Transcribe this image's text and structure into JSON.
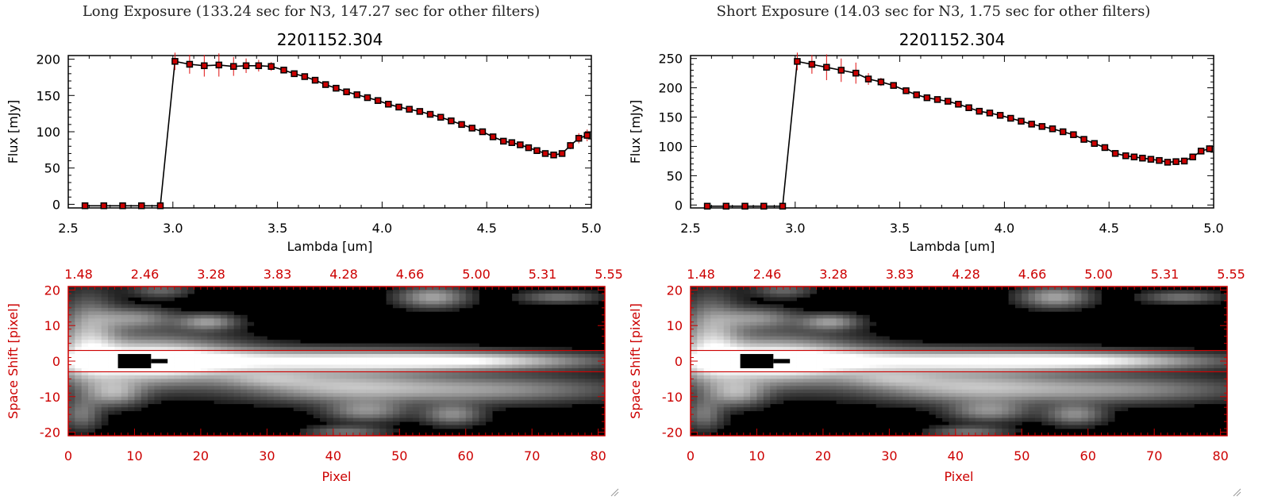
{
  "colors": {
    "line": "#000000",
    "marker": "#cc0000",
    "errbar": "#e01010",
    "axis_red": "#cc0000",
    "background": "#ffffff"
  },
  "panels": [
    {
      "title": "Long Exposure (133.24 sec for N3, 147.27 sec for other filters)",
      "chart_data": [
        {
          "type": "line",
          "title": "2201152.304",
          "xlabel": "Lambda [um]",
          "ylabel": "Flux [mJy]",
          "xlim": [
            2.5,
            5.0
          ],
          "ylim": [
            -5,
            205
          ],
          "xticks": [
            "2.5",
            "3.0",
            "3.5",
            "4.0",
            "4.5",
            "5.0"
          ],
          "yticks": [
            "0",
            "50",
            "100",
            "150",
            "200"
          ],
          "series": [
            {
              "name": "flux",
              "x": [
                2.58,
                2.67,
                2.76,
                2.85,
                2.94,
                3.01,
                3.08,
                3.15,
                3.22,
                3.29,
                3.35,
                3.41,
                3.47,
                3.53,
                3.58,
                3.63,
                3.68,
                3.73,
                3.78,
                3.83,
                3.88,
                3.93,
                3.98,
                4.03,
                4.08,
                4.13,
                4.18,
                4.23,
                4.28,
                4.33,
                4.38,
                4.43,
                4.48,
                4.53,
                4.58,
                4.62,
                4.66,
                4.7,
                4.74,
                4.78,
                4.82,
                4.86,
                4.9,
                4.94,
                4.98
              ],
              "y": [
                -2,
                -2,
                -2,
                -2,
                -2,
                197,
                193,
                191,
                192,
                190,
                191,
                191,
                190,
                185,
                180,
                176,
                171,
                165,
                160,
                155,
                151,
                147,
                143,
                138,
                134,
                131,
                128,
                124,
                120,
                115,
                110,
                105,
                100,
                93,
                87,
                85,
                82,
                78,
                74,
                70,
                68,
                70,
                81,
                91,
                95
              ],
              "err": [
                2,
                2,
                2,
                2,
                2,
                12,
                13,
                15,
                16,
                13,
                10,
                8,
                6,
                4,
                3,
                3,
                3,
                3,
                3,
                3,
                3,
                3,
                3,
                3,
                3,
                3,
                3,
                3,
                3,
                3,
                3,
                3,
                3,
                3,
                3,
                3,
                3,
                3,
                3,
                3,
                3,
                4,
                5,
                7,
                8
              ]
            }
          ]
        },
        {
          "type": "heatmap",
          "xlabel": "Pixel",
          "ylabel": "Space Shift [pixel]",
          "xlim": [
            0,
            81
          ],
          "ylim": [
            -21,
            21
          ],
          "xticks": [
            "0",
            "10",
            "20",
            "30",
            "40",
            "50",
            "60",
            "70",
            "80"
          ],
          "yticks": [
            "-20",
            "-10",
            "0",
            "10",
            "20"
          ],
          "top_ticks": [
            "1.48",
            "2.46",
            "3.28",
            "3.83",
            "4.28",
            "4.66",
            "5.00",
            "5.31",
            "5.55"
          ],
          "band": [
            -3,
            3
          ],
          "blobs": [
            {
              "x": 12,
              "y": 0,
              "sx": 9,
              "sy": 4.5,
              "a": 1.0
            },
            {
              "x": 35,
              "y": 0,
              "sx": 22,
              "sy": 2.2,
              "a": 0.9
            },
            {
              "x": 60,
              "y": 0,
              "sx": 12,
              "sy": 1.5,
              "a": 0.6
            },
            {
              "x": 3,
              "y": 6,
              "sx": 3,
              "sy": 8,
              "a": 0.6
            },
            {
              "x": 10,
              "y": 12,
              "sx": 4,
              "sy": 2,
              "a": 0.45
            },
            {
              "x": 21,
              "y": 11,
              "sx": 3,
              "sy": 1.5,
              "a": 0.5
            },
            {
              "x": 14,
              "y": 20,
              "sx": 3,
              "sy": 1.5,
              "a": 0.3
            },
            {
              "x": 55,
              "y": 18,
              "sx": 3.5,
              "sy": 2,
              "a": 0.55
            },
            {
              "x": 74,
              "y": 18,
              "sx": 4,
              "sy": 1.2,
              "a": 0.35
            },
            {
              "x": 40,
              "y": -7,
              "sx": 10,
              "sy": 3,
              "a": 0.55
            },
            {
              "x": 62,
              "y": -8,
              "sx": 14,
              "sy": 2.5,
              "a": 0.5
            },
            {
              "x": 45,
              "y": -14,
              "sx": 4,
              "sy": 2,
              "a": 0.45
            },
            {
              "x": 58,
              "y": -15,
              "sx": 3,
              "sy": 2,
              "a": 0.45
            },
            {
              "x": 7,
              "y": -9,
              "sx": 3,
              "sy": 2.5,
              "a": 0.5
            },
            {
              "x": 30,
              "y": -5,
              "sx": 5,
              "sy": 1.5,
              "a": 0.3
            },
            {
              "x": 42,
              "y": -20,
              "sx": 4,
              "sy": 1.2,
              "a": 0.35
            },
            {
              "x": 2,
              "y": -15,
              "sx": 2,
              "sy": 3,
              "a": 0.35
            }
          ],
          "dark_core": {
            "x": [
              7.5,
              12.5
            ],
            "y": [
              -2,
              2
            ],
            "tail_to": 15
          }
        }
      ]
    },
    {
      "title": "Short Exposure (14.03 sec for N3, 1.75 sec for other filters)",
      "chart_data": [
        {
          "type": "line",
          "title": "2201152.304",
          "xlabel": "Lambda [um]",
          "ylabel": "Flux [mJy]",
          "xlim": [
            2.5,
            5.0
          ],
          "ylim": [
            -5,
            255
          ],
          "xticks": [
            "2.5",
            "3.0",
            "3.5",
            "4.0",
            "4.5",
            "5.0"
          ],
          "yticks": [
            "0",
            "50",
            "100",
            "150",
            "200",
            "250"
          ],
          "series": [
            {
              "name": "flux",
              "x": [
                2.58,
                2.67,
                2.76,
                2.85,
                2.94,
                3.01,
                3.08,
                3.15,
                3.22,
                3.29,
                3.35,
                3.41,
                3.47,
                3.53,
                3.58,
                3.63,
                3.68,
                3.73,
                3.78,
                3.83,
                3.88,
                3.93,
                3.98,
                4.03,
                4.08,
                4.13,
                4.18,
                4.23,
                4.28,
                4.33,
                4.38,
                4.43,
                4.48,
                4.53,
                4.58,
                4.62,
                4.66,
                4.7,
                4.74,
                4.78,
                4.82,
                4.86,
                4.9,
                4.94,
                4.98
              ],
              "y": [
                -2,
                -2,
                -2,
                -2,
                -2,
                245,
                240,
                235,
                230,
                225,
                215,
                210,
                204,
                195,
                188,
                183,
                180,
                177,
                172,
                166,
                160,
                157,
                153,
                148,
                143,
                138,
                134,
                130,
                125,
                120,
                112,
                105,
                98,
                88,
                84,
                82,
                80,
                78,
                76,
                73,
                74,
                75,
                82,
                92,
                96
              ],
              "err": [
                2,
                2,
                2,
                2,
                2,
                15,
                16,
                22,
                20,
                18,
                10,
                7,
                5,
                4,
                3,
                3,
                3,
                3,
                3,
                3,
                3,
                3,
                3,
                3,
                3,
                3,
                3,
                3,
                3,
                3,
                3,
                3,
                3,
                3,
                3,
                3,
                3,
                3,
                3,
                3,
                3,
                3,
                4,
                5,
                6
              ]
            }
          ]
        },
        {
          "type": "heatmap",
          "xlabel": "Pixel",
          "ylabel": "Space Shift [pixel]",
          "xlim": [
            0,
            81
          ],
          "ylim": [
            -21,
            21
          ],
          "xticks": [
            "0",
            "10",
            "20",
            "30",
            "40",
            "50",
            "60",
            "70",
            "80"
          ],
          "yticks": [
            "-20",
            "-10",
            "0",
            "10",
            "20"
          ],
          "top_ticks": [
            "1.48",
            "2.46",
            "3.28",
            "3.83",
            "4.28",
            "4.66",
            "5.00",
            "5.31",
            "5.55"
          ],
          "band": [
            -3,
            3
          ],
          "blobs": [
            {
              "x": 12,
              "y": 0,
              "sx": 9,
              "sy": 4.5,
              "a": 1.0
            },
            {
              "x": 35,
              "y": 0,
              "sx": 22,
              "sy": 2.2,
              "a": 0.9
            },
            {
              "x": 60,
              "y": 0,
              "sx": 12,
              "sy": 1.5,
              "a": 0.6
            },
            {
              "x": 3,
              "y": 6,
              "sx": 3,
              "sy": 8,
              "a": 0.6
            },
            {
              "x": 10,
              "y": 12,
              "sx": 4,
              "sy": 2,
              "a": 0.45
            },
            {
              "x": 21,
              "y": 11,
              "sx": 3,
              "sy": 1.5,
              "a": 0.5
            },
            {
              "x": 14,
              "y": 20,
              "sx": 3,
              "sy": 1.5,
              "a": 0.3
            },
            {
              "x": 55,
              "y": 18,
              "sx": 3.5,
              "sy": 2,
              "a": 0.55
            },
            {
              "x": 74,
              "y": 18,
              "sx": 4,
              "sy": 1.2,
              "a": 0.35
            },
            {
              "x": 40,
              "y": -7,
              "sx": 10,
              "sy": 3,
              "a": 0.55
            },
            {
              "x": 62,
              "y": -8,
              "sx": 14,
              "sy": 2.5,
              "a": 0.5
            },
            {
              "x": 45,
              "y": -14,
              "sx": 4,
              "sy": 2,
              "a": 0.45
            },
            {
              "x": 58,
              "y": -15,
              "sx": 3,
              "sy": 2,
              "a": 0.45
            },
            {
              "x": 7,
              "y": -9,
              "sx": 3,
              "sy": 2.5,
              "a": 0.5
            },
            {
              "x": 30,
              "y": -5,
              "sx": 5,
              "sy": 1.5,
              "a": 0.3
            },
            {
              "x": 42,
              "y": -20,
              "sx": 4,
              "sy": 1.2,
              "a": 0.35
            },
            {
              "x": 2,
              "y": -15,
              "sx": 2,
              "sy": 3,
              "a": 0.35
            }
          ],
          "dark_core": {
            "x": [
              7.5,
              12.5
            ],
            "y": [
              -2,
              2
            ],
            "tail_to": 15
          }
        }
      ]
    }
  ]
}
